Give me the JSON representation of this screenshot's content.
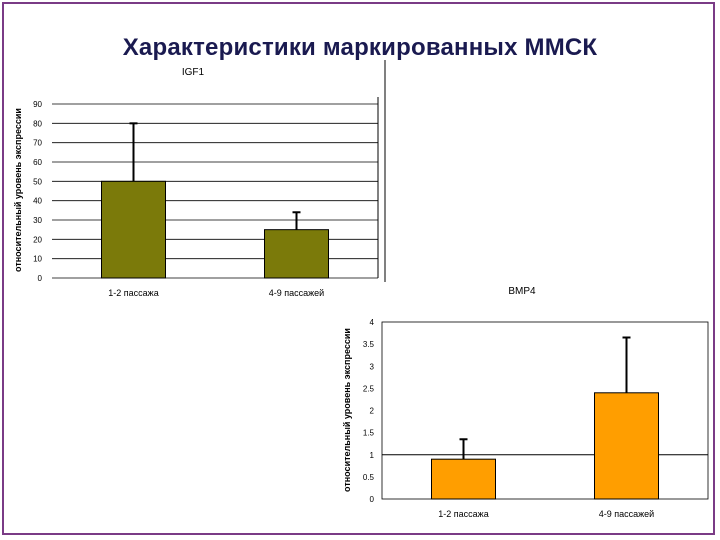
{
  "slide": {
    "title": "Характеристики маркированных ММСК"
  },
  "chart_data": [
    {
      "type": "bar",
      "title": "IGF1",
      "ylabel": "относительный уровень экспрессии",
      "xlabel": "",
      "categories": [
        "1-2 пассажа",
        "4-9 пассажей"
      ],
      "values": [
        50,
        25
      ],
      "error_upper": [
        80,
        34
      ],
      "ylim": [
        0,
        90
      ],
      "yticks": [
        0,
        10,
        20,
        30,
        40,
        50,
        60,
        70,
        80,
        90
      ],
      "ytick_labels": [
        "0",
        "10",
        "20",
        "30",
        "40",
        "50",
        "60",
        "70",
        "80",
        "90"
      ],
      "grid": true,
      "legend": "none",
      "bar_color": "#7b7a0a"
    },
    {
      "type": "bar",
      "title": "BMP4",
      "ylabel": "относительный уровень экспрессии",
      "xlabel": "",
      "categories": [
        "1-2 пассажа",
        "4-9 пассажей"
      ],
      "values": [
        0.9,
        2.4
      ],
      "error_upper": [
        1.35,
        3.65
      ],
      "ylim": [
        0,
        4
      ],
      "yticks": [
        0,
        0.5,
        1,
        1.5,
        2,
        2.5,
        3,
        3.5,
        4
      ],
      "ytick_labels": [
        "0",
        "0.5",
        "1",
        "1.5",
        "2",
        "2.5",
        "3",
        "3.5",
        "4"
      ],
      "reference_line": 1,
      "grid": false,
      "legend": "none",
      "bar_color": "#ff9e00"
    }
  ]
}
